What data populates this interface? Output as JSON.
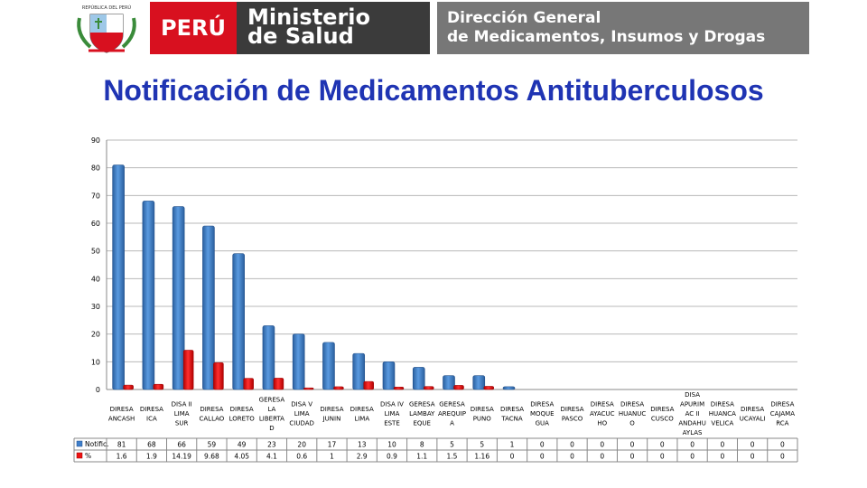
{
  "header": {
    "crest_label": "REPÚBLICA DEL PERÚ",
    "country": "PERÚ",
    "ministry_line1": "Ministerio",
    "ministry_line2": "de Salud",
    "directorate_line1": "Dirección General",
    "directorate_line2": "de Medicamentos, Insumos y Drogas"
  },
  "colors": {
    "title": "#1f34b3",
    "series_notific": "#3f7fcb",
    "series_pct": "#ee1111",
    "peru_red": "#d8101f"
  },
  "chart_data": {
    "type": "bar",
    "title": "Notificación de Medicamentos Antituberculosos",
    "ylim": [
      0,
      90
    ],
    "yticks": [
      0,
      10,
      20,
      30,
      40,
      50,
      60,
      70,
      80,
      90
    ],
    "grid": true,
    "legend_placement": "table-left",
    "categories": [
      [
        "DIRESA",
        "ANCASH"
      ],
      [
        "DIRESA",
        "ICA"
      ],
      [
        "DISA II",
        "LIMA",
        "SUR"
      ],
      [
        "DIRESA",
        "CALLAO"
      ],
      [
        "DIRESA",
        "LORETO"
      ],
      [
        "GERESA",
        "LA",
        "LIBERTA",
        "D"
      ],
      [
        "DISA V",
        "LIMA",
        "CIUDAD"
      ],
      [
        "DIRESA",
        "JUNIN"
      ],
      [
        "DIRESA",
        "LIMA"
      ],
      [
        "DISA IV",
        "LIMA",
        "ESTE"
      ],
      [
        "GERESA",
        "LAMBAY",
        "EQUE"
      ],
      [
        "GERESA",
        "AREQUIP",
        "A"
      ],
      [
        "DIRESA",
        "PUNO"
      ],
      [
        "DIRESA",
        "TACNA"
      ],
      [
        "DIRESA",
        "MOQUE",
        "GUA"
      ],
      [
        "DIRESA",
        "PASCO"
      ],
      [
        "DIRESA",
        "AYACUC",
        "HO"
      ],
      [
        "DIRESA",
        "HUANUC",
        "O"
      ],
      [
        "DIRESA",
        "CUSCO"
      ],
      [
        "DISA",
        "APURIM",
        "AC II",
        "ANDAHU",
        "AYLAS"
      ],
      [
        "DIRESA",
        "HUANCA",
        "VELICA"
      ],
      [
        "DIRESA",
        "UCAYALI"
      ],
      [
        "DIRESA",
        "CAJAMA",
        "RCA"
      ]
    ],
    "series": [
      {
        "name": "Notific.",
        "values": [
          81,
          68,
          66,
          59,
          49,
          23,
          20,
          17,
          13,
          10,
          8,
          5,
          5,
          1,
          0,
          0,
          0,
          0,
          0,
          0,
          0,
          0,
          0
        ]
      },
      {
        "name": "%",
        "values": [
          1.6,
          1.9,
          14.19,
          9.68,
          4.05,
          4.1,
          0.6,
          1,
          2.9,
          0.9,
          1.1,
          1.5,
          1.16,
          0,
          0,
          0,
          0,
          0,
          0,
          0,
          0,
          0,
          0
        ]
      }
    ],
    "table_labels": [
      [
        "81",
        "68",
        "66",
        "59",
        "49",
        "23",
        "20",
        "17",
        "13",
        "10",
        "8",
        "5",
        "5",
        "1",
        "0",
        "0",
        "0",
        "0",
        "0",
        "0",
        "0",
        "0",
        "0"
      ],
      [
        "1.6",
        "1.9",
        "14.19",
        "9.68",
        "4.05",
        "4.1",
        "0.6",
        "1",
        "2.9",
        "0.9",
        "1.1",
        "1.5",
        "1.16",
        "0",
        "0",
        "0",
        "0",
        "0",
        "0",
        "0",
        "0",
        "0",
        "0"
      ]
    ]
  }
}
